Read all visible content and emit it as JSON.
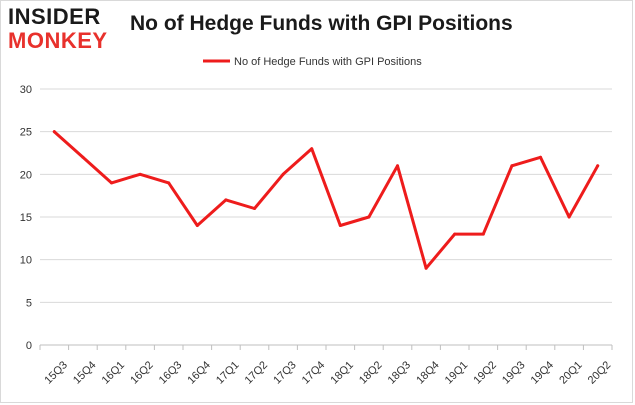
{
  "logo": {
    "line1": "INSIDER",
    "line2": "MONKEY"
  },
  "colors": {
    "series": "#ee1c1c",
    "grid": "#d9d9d9",
    "axis": "#bfbfbf",
    "logo_dark": "#1a1a1a",
    "logo_red": "#e8312c"
  },
  "chart_data": {
    "type": "line",
    "title": "No of Hedge Funds with GPI Positions",
    "xlabel": "",
    "ylabel": "",
    "ylim": [
      0,
      30
    ],
    "yticks": [
      0,
      5,
      10,
      15,
      20,
      25,
      30
    ],
    "grid": true,
    "legend_position": "top",
    "categories": [
      "15Q3",
      "15Q4",
      "16Q1",
      "16Q2",
      "16Q3",
      "16Q4",
      "17Q1",
      "17Q2",
      "17Q3",
      "17Q4",
      "18Q1",
      "18Q2",
      "18Q3",
      "18Q4",
      "19Q1",
      "19Q2",
      "19Q3",
      "19Q4",
      "20Q1",
      "20Q2"
    ],
    "series": [
      {
        "name": "No of Hedge Funds with GPI Positions",
        "values": [
          25,
          22,
          19,
          20,
          19,
          14,
          17,
          16,
          20,
          23,
          14,
          15,
          21,
          9,
          13,
          13,
          21,
          22,
          15,
          21
        ]
      }
    ]
  }
}
